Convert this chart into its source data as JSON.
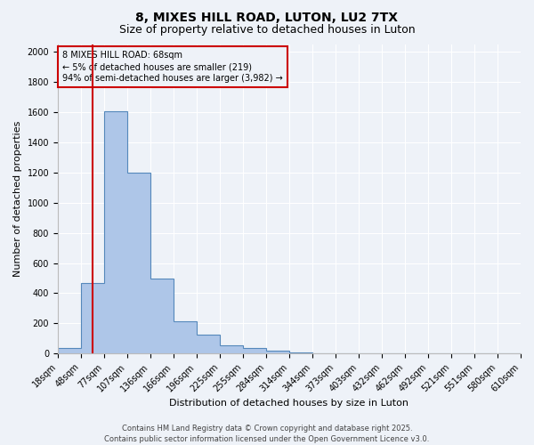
{
  "title": "8, MIXES HILL ROAD, LUTON, LU2 7TX",
  "subtitle": "Size of property relative to detached houses in Luton",
  "xlabel": "Distribution of detached houses by size in Luton",
  "ylabel": "Number of detached properties",
  "bar_values": [
    35,
    465,
    1610,
    1200,
    500,
    215,
    125,
    55,
    35,
    20,
    10,
    0,
    0,
    0,
    0,
    0,
    0,
    0,
    0,
    0
  ],
  "bar_labels": [
    "18sqm",
    "48sqm",
    "77sqm",
    "107sqm",
    "136sqm",
    "166sqm",
    "196sqm",
    "225sqm",
    "255sqm",
    "284sqm",
    "314sqm",
    "344sqm",
    "373sqm",
    "403sqm",
    "432sqm",
    "462sqm",
    "492sqm",
    "521sqm",
    "551sqm",
    "580sqm",
    "610sqm"
  ],
  "bar_color": "#aec6e8",
  "bar_edge_color": "#5588bb",
  "vline_color": "#cc0000",
  "vline_position": 1.5,
  "annotation_box_text": "8 MIXES HILL ROAD: 68sqm\n← 5% of detached houses are smaller (219)\n94% of semi-detached houses are larger (3,982) →",
  "annotation_box_color": "#cc0000",
  "ylim": [
    0,
    2050
  ],
  "yticks": [
    0,
    200,
    400,
    600,
    800,
    1000,
    1200,
    1400,
    1600,
    1800,
    2000
  ],
  "background_color": "#eef2f8",
  "grid_color": "#ffffff",
  "footnote": "Contains HM Land Registry data © Crown copyright and database right 2025.\nContains public sector information licensed under the Open Government Licence v3.0.",
  "title_fontsize": 10,
  "subtitle_fontsize": 9,
  "axis_label_fontsize": 8,
  "tick_fontsize": 7,
  "annotation_fontsize": 7,
  "footnote_fontsize": 6
}
